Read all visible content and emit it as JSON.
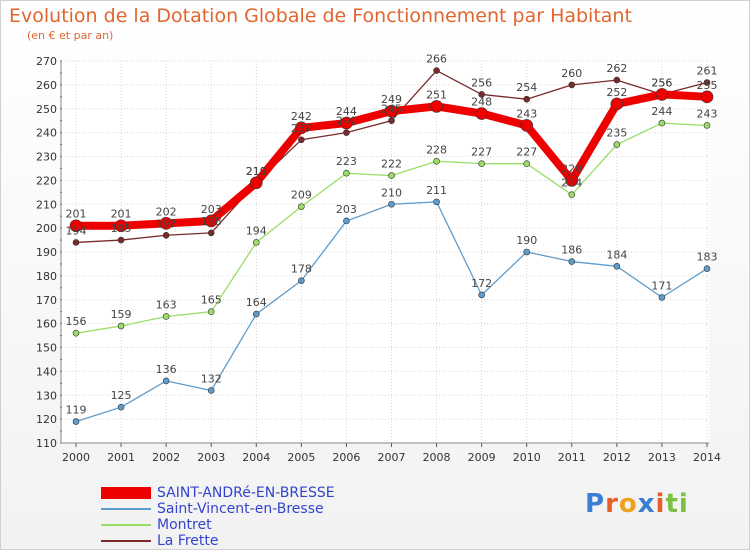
{
  "chart_data": {
    "type": "line",
    "title": "Evolution de la Dotation Globale de Fonctionnement par Habitant",
    "subtitle": "(en € et par an)",
    "xlabel": "",
    "ylabel": "",
    "ylim": [
      110,
      270
    ],
    "yticks": [
      110,
      120,
      130,
      140,
      150,
      160,
      170,
      180,
      190,
      200,
      210,
      220,
      230,
      240,
      250,
      260,
      270
    ],
    "categories": [
      "2000",
      "2001",
      "2002",
      "2003",
      "2004",
      "2005",
      "2006",
      "2007",
      "2008",
      "2009",
      "2010",
      "2011",
      "2012",
      "2013",
      "2014"
    ],
    "grid": true,
    "legend_position": "bottom-left",
    "series": [
      {
        "name": "La Frette",
        "color": "#7a2a2a",
        "values": [
          194,
          195,
          197,
          198,
          219,
          237,
          240,
          245,
          266,
          256,
          254,
          260,
          262,
          256,
          261
        ]
      },
      {
        "name": "Montret",
        "color": "#99dd66",
        "values": [
          156,
          159,
          163,
          165,
          194,
          209,
          223,
          222,
          228,
          227,
          227,
          214,
          235,
          244,
          243
        ]
      },
      {
        "name": "Saint-Vincent-en-Bresse",
        "color": "#5e9ccc",
        "values": [
          119,
          125,
          136,
          132,
          164,
          178,
          203,
          210,
          211,
          172,
          190,
          186,
          184,
          171,
          183
        ]
      },
      {
        "name": "SAINT-ANDRé-EN-BRESSE",
        "color": "#ee0000",
        "values": [
          201,
          201,
          202,
          203,
          219,
          242,
          244,
          249,
          251,
          248,
          243,
          220,
          252,
          256,
          255
        ]
      }
    ]
  },
  "legend": {
    "items": [
      {
        "label": "SAINT-ANDRé-EN-BRESSE",
        "color": "#ee0000",
        "text_color": "#3344cc"
      },
      {
        "label": "Saint-Vincent-en-Bresse",
        "color": "#5e9ccc",
        "text_color": "#3344cc"
      },
      {
        "label": "Montret",
        "color": "#99dd66",
        "text_color": "#3344cc"
      },
      {
        "label": "La Frette",
        "color": "#7a2a2a",
        "text_color": "#3344cc"
      }
    ]
  },
  "logo": {
    "letters": [
      "P",
      "r",
      "o",
      "x",
      "i",
      "t",
      "i"
    ],
    "colors": [
      "#3a7fd5",
      "#e85e2a",
      "#f0a020",
      "#3a7fd5",
      "#e85e2a",
      "#7ac043",
      "#7ac043"
    ]
  }
}
